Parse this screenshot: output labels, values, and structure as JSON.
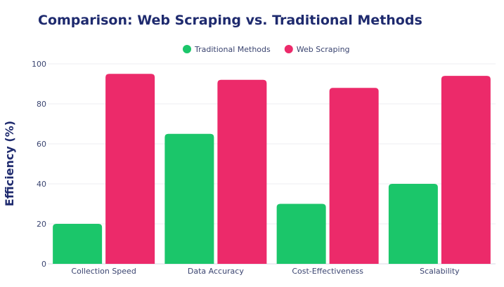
{
  "chart_data": {
    "type": "bar",
    "title": "Comparison: Web Scraping vs. Traditional Methods",
    "xlabel": "",
    "ylabel": "Efficiency (%)",
    "ylim": [
      0,
      100
    ],
    "yticks": [
      0,
      20,
      40,
      60,
      80,
      100
    ],
    "grid": true,
    "legend_position": "top-center",
    "categories": [
      "Collection Speed",
      "Data Accuracy",
      "Cost-Effectiveness",
      "Scalability"
    ],
    "series": [
      {
        "name": "Traditional Methods",
        "color": "#1bc66a",
        "values": [
          20,
          65,
          30,
          40
        ]
      },
      {
        "name": "Web Scraping",
        "color": "#ec2a6a",
        "values": [
          95,
          92,
          88,
          94
        ]
      }
    ]
  }
}
